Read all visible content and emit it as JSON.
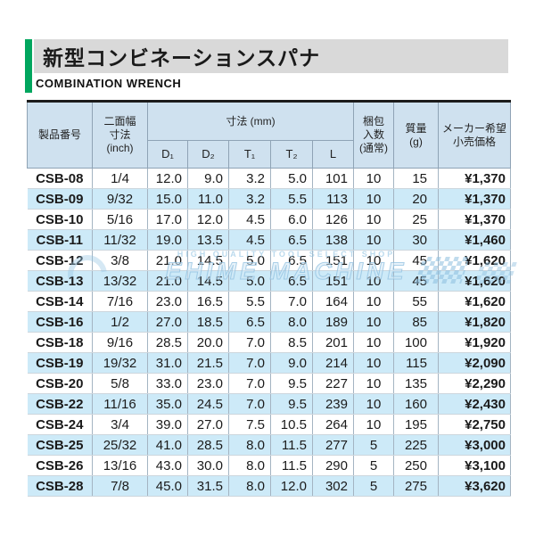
{
  "title": {
    "jp": "新型コンビネーションスパナ",
    "en": "COMBINATION WRENCH"
  },
  "colors": {
    "accent-green": "#00a65e",
    "title-band": "#d9d9d9",
    "header-bg": "#cfe1ef",
    "stripe-bg": "#cdeaf8"
  },
  "watermark": {
    "line1": "HIGH QUALITY TOOL SELECT SHOP",
    "line2": "EHIME MACHINE"
  },
  "table": {
    "headers": {
      "product": "製品番号",
      "width_inch": "二面幅\n寸法\n(inch)",
      "dims_mm": "寸法 (mm)",
      "sub": [
        "D₁",
        "D₂",
        "T₁",
        "T₂",
        "L"
      ],
      "pack": "梱包\n入数\n(通常)",
      "mass": "質量\n(g)",
      "price": "メーカー希望\n小売価格"
    },
    "rows": [
      {
        "code": "CSB-08",
        "inch": "1/4",
        "d1": "12.0",
        "d2": "9.0",
        "t1": "3.2",
        "t2": "5.0",
        "l": "101",
        "pack": "10",
        "mass": "15",
        "price": "¥1,370"
      },
      {
        "code": "CSB-09",
        "inch": "9/32",
        "d1": "15.0",
        "d2": "11.0",
        "t1": "3.2",
        "t2": "5.5",
        "l": "113",
        "pack": "10",
        "mass": "20",
        "price": "¥1,370"
      },
      {
        "code": "CSB-10",
        "inch": "5/16",
        "d1": "17.0",
        "d2": "12.0",
        "t1": "4.5",
        "t2": "6.0",
        "l": "126",
        "pack": "10",
        "mass": "25",
        "price": "¥1,370"
      },
      {
        "code": "CSB-11",
        "inch": "11/32",
        "d1": "19.0",
        "d2": "13.5",
        "t1": "4.5",
        "t2": "6.5",
        "l": "138",
        "pack": "10",
        "mass": "30",
        "price": "¥1,460"
      },
      {
        "code": "CSB-12",
        "inch": "3/8",
        "d1": "21.0",
        "d2": "14.5",
        "t1": "5.0",
        "t2": "6.5",
        "l": "151",
        "pack": "10",
        "mass": "45",
        "price": "¥1,620"
      },
      {
        "code": "CSB-13",
        "inch": "13/32",
        "d1": "21.0",
        "d2": "14.5",
        "t1": "5.0",
        "t2": "6.5",
        "l": "151",
        "pack": "10",
        "mass": "45",
        "price": "¥1,620"
      },
      {
        "code": "CSB-14",
        "inch": "7/16",
        "d1": "23.0",
        "d2": "16.5",
        "t1": "5.5",
        "t2": "7.0",
        "l": "164",
        "pack": "10",
        "mass": "55",
        "price": "¥1,620"
      },
      {
        "code": "CSB-16",
        "inch": "1/2",
        "d1": "27.0",
        "d2": "18.5",
        "t1": "6.5",
        "t2": "8.0",
        "l": "189",
        "pack": "10",
        "mass": "85",
        "price": "¥1,820"
      },
      {
        "code": "CSB-18",
        "inch": "9/16",
        "d1": "28.5",
        "d2": "20.0",
        "t1": "7.0",
        "t2": "8.5",
        "l": "201",
        "pack": "10",
        "mass": "100",
        "price": "¥1,920"
      },
      {
        "code": "CSB-19",
        "inch": "19/32",
        "d1": "31.0",
        "d2": "21.5",
        "t1": "7.0",
        "t2": "9.0",
        "l": "214",
        "pack": "10",
        "mass": "115",
        "price": "¥2,090"
      },
      {
        "code": "CSB-20",
        "inch": "5/8",
        "d1": "33.0",
        "d2": "23.0",
        "t1": "7.0",
        "t2": "9.5",
        "l": "227",
        "pack": "10",
        "mass": "135",
        "price": "¥2,290"
      },
      {
        "code": "CSB-22",
        "inch": "11/16",
        "d1": "35.0",
        "d2": "24.5",
        "t1": "7.0",
        "t2": "9.5",
        "l": "239",
        "pack": "10",
        "mass": "160",
        "price": "¥2,430"
      },
      {
        "code": "CSB-24",
        "inch": "3/4",
        "d1": "39.0",
        "d2": "27.0",
        "t1": "7.5",
        "t2": "10.5",
        "l": "264",
        "pack": "10",
        "mass": "195",
        "price": "¥2,750"
      },
      {
        "code": "CSB-25",
        "inch": "25/32",
        "d1": "41.0",
        "d2": "28.5",
        "t1": "8.0",
        "t2": "11.5",
        "l": "277",
        "pack": "5",
        "mass": "225",
        "price": "¥3,000"
      },
      {
        "code": "CSB-26",
        "inch": "13/16",
        "d1": "43.0",
        "d2": "30.0",
        "t1": "8.0",
        "t2": "11.5",
        "l": "290",
        "pack": "5",
        "mass": "250",
        "price": "¥3,100"
      },
      {
        "code": "CSB-28",
        "inch": "7/8",
        "d1": "45.0",
        "d2": "31.5",
        "t1": "8.0",
        "t2": "12.0",
        "l": "302",
        "pack": "5",
        "mass": "275",
        "price": "¥3,620"
      }
    ]
  }
}
